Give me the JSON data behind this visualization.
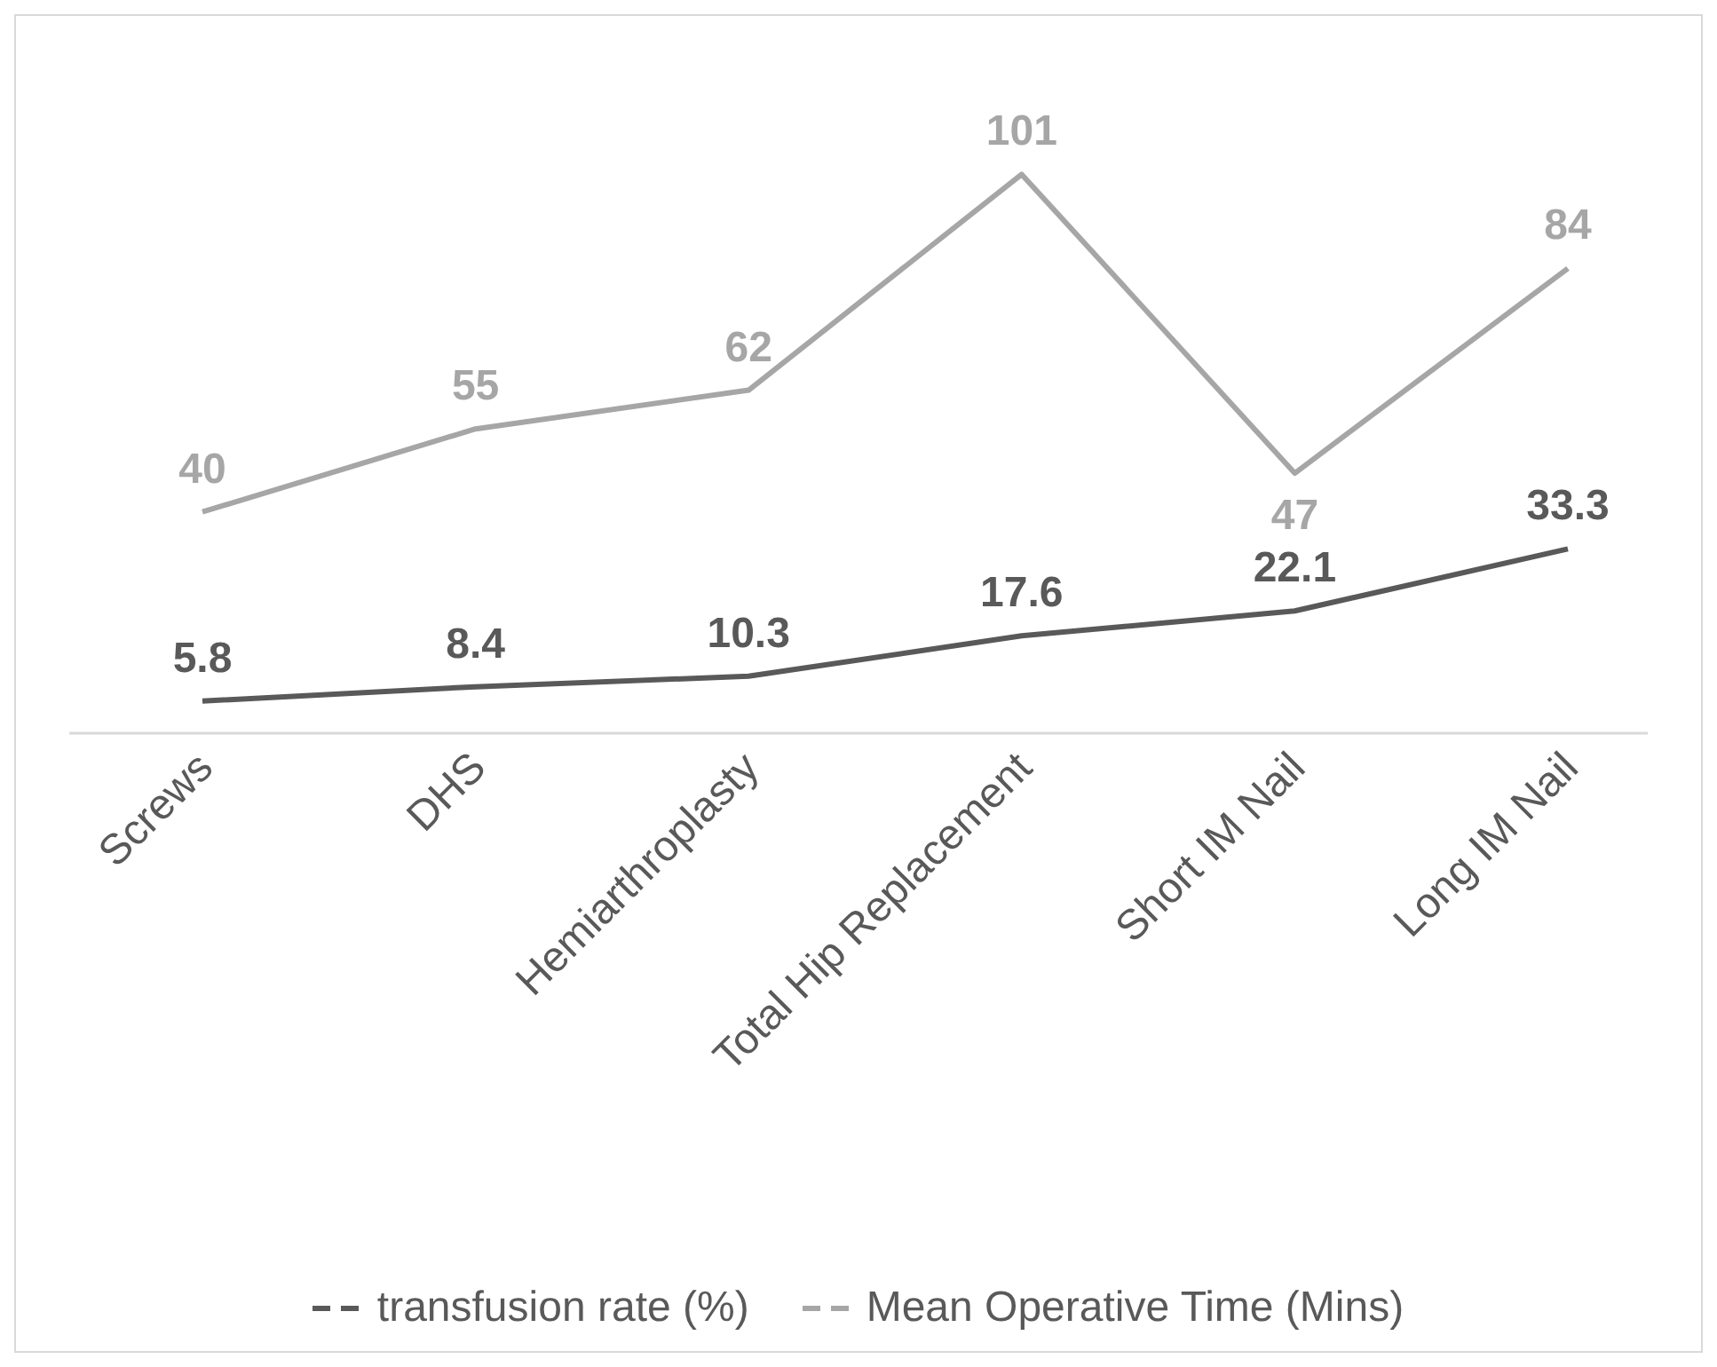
{
  "chart_data": {
    "type": "line",
    "categories": [
      "Screws",
      "DHS",
      "Hemiarthroplasty",
      "Total Hip Replacement",
      "Short IM Nail",
      "Long IM Nail"
    ],
    "series": [
      {
        "name": "transfusion rate (%)",
        "color": "#595959",
        "values": [
          5.8,
          8.4,
          10.3,
          17.6,
          22.1,
          33.3
        ]
      },
      {
        "name": "Mean Operative Time (Mins)",
        "color": "#a6a6a6",
        "values": [
          40,
          55,
          62,
          101,
          47,
          84
        ]
      }
    ],
    "tick_labels": "x",
    "data_labels": true,
    "legend": "bottom",
    "grid": false,
    "marker": "none",
    "line_style": "solid"
  }
}
